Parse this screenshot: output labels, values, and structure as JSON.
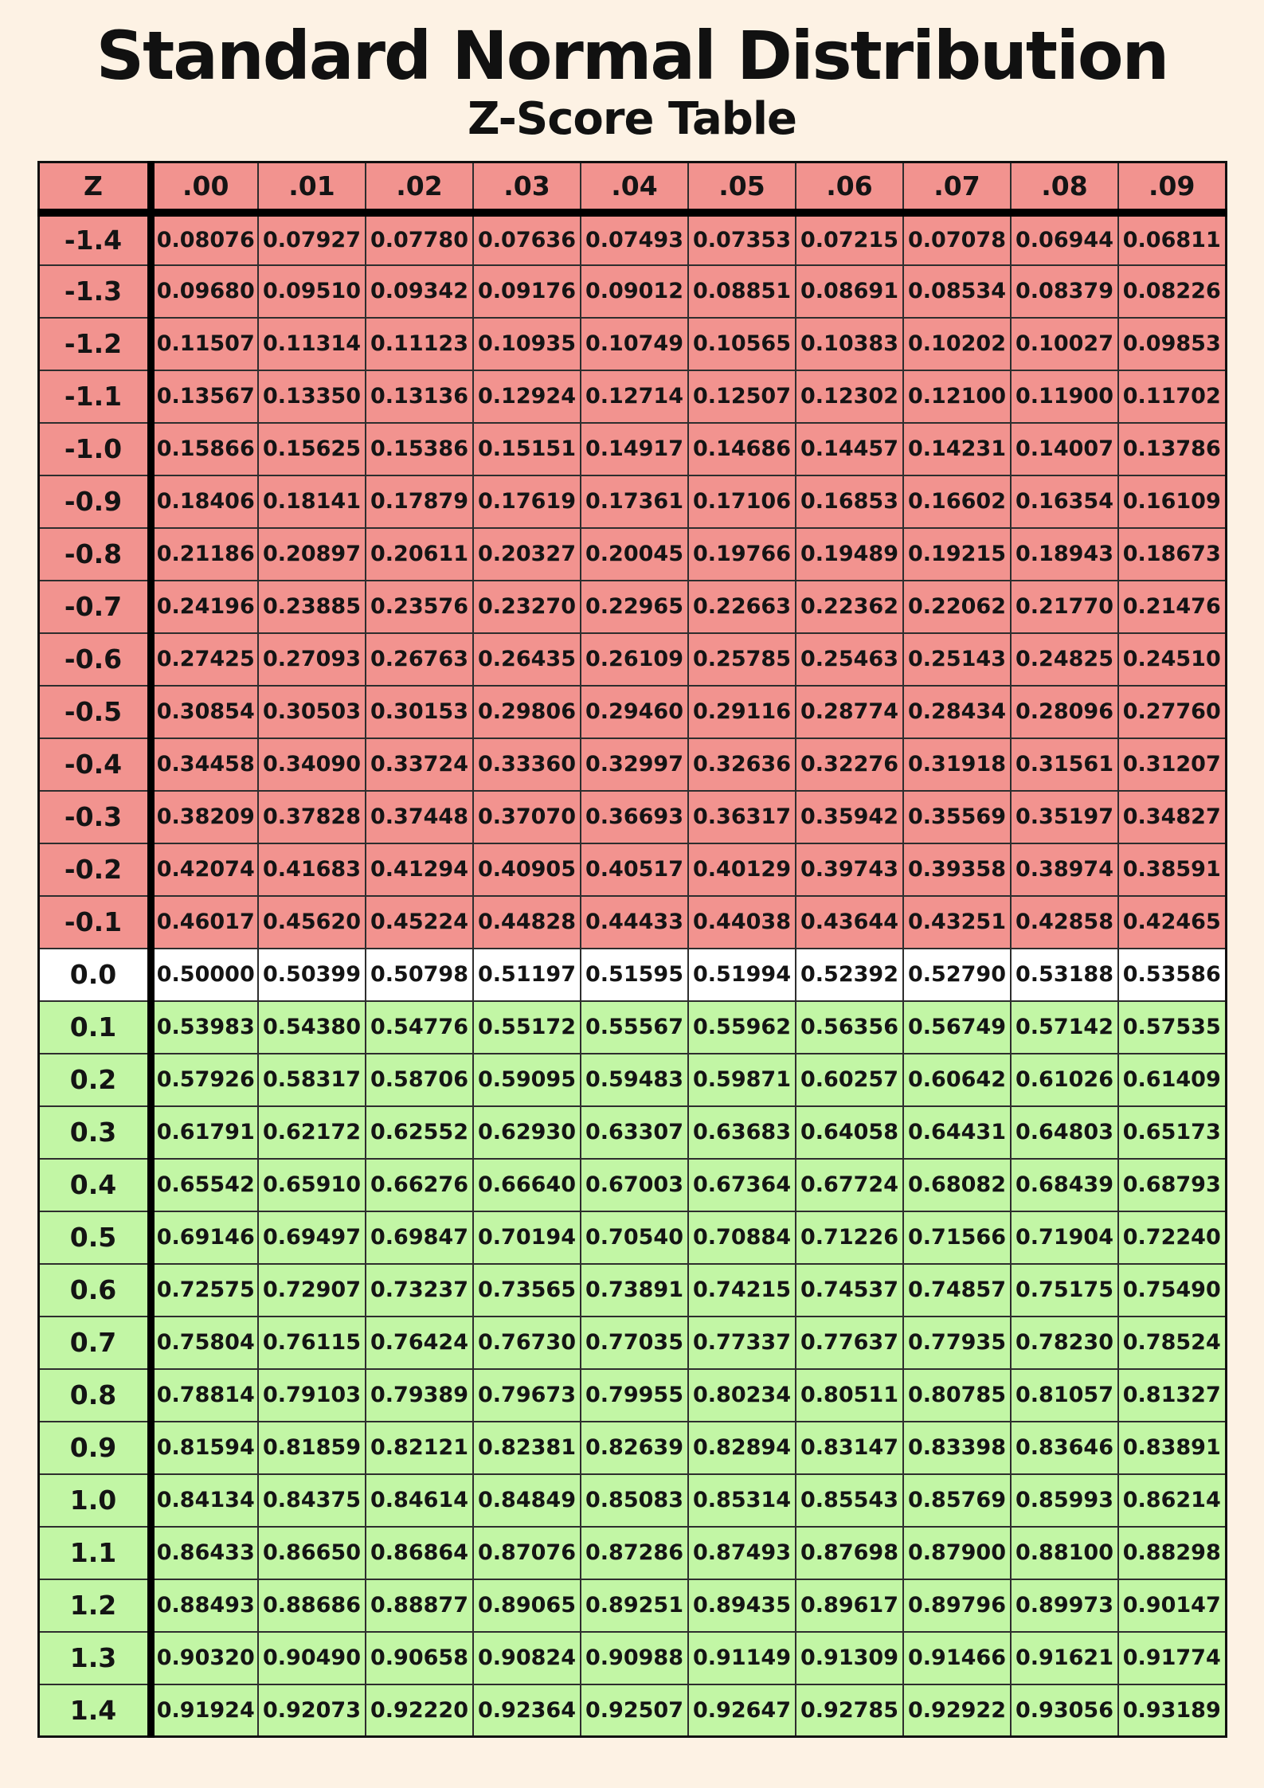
{
  "title": "Standard Normal Distribution",
  "subtitle": "Z-Score Table",
  "colors": {
    "background": "#FDF2E4",
    "negative_rows": "#F2938F",
    "zero_row": "#FFFFFF",
    "positive_rows": "#C2F6A5",
    "header_row": "#F2938F",
    "text": "#141414"
  },
  "chart_data": {
    "type": "table",
    "title": "Standard Normal Distribution",
    "subtitle": "Z-Score Table",
    "columns": [
      "Z",
      ".00",
      ".01",
      ".02",
      ".03",
      ".04",
      ".05",
      ".06",
      ".07",
      ".08",
      ".09"
    ],
    "rows": [
      {
        "z": "-1.4",
        "values": [
          "0.08076",
          "0.07927",
          "0.07780",
          "0.07636",
          "0.07493",
          "0.07353",
          "0.07215",
          "0.07078",
          "0.06944",
          "0.06811"
        ]
      },
      {
        "z": "-1.3",
        "values": [
          "0.09680",
          "0.09510",
          "0.09342",
          "0.09176",
          "0.09012",
          "0.08851",
          "0.08691",
          "0.08534",
          "0.08379",
          "0.08226"
        ]
      },
      {
        "z": "-1.2",
        "values": [
          "0.11507",
          "0.11314",
          "0.11123",
          "0.10935",
          "0.10749",
          "0.10565",
          "0.10383",
          "0.10202",
          "0.10027",
          "0.09853"
        ]
      },
      {
        "z": "-1.1",
        "values": [
          "0.13567",
          "0.13350",
          "0.13136",
          "0.12924",
          "0.12714",
          "0.12507",
          "0.12302",
          "0.12100",
          "0.11900",
          "0.11702"
        ]
      },
      {
        "z": "-1.0",
        "values": [
          "0.15866",
          "0.15625",
          "0.15386",
          "0.15151",
          "0.14917",
          "0.14686",
          "0.14457",
          "0.14231",
          "0.14007",
          "0.13786"
        ]
      },
      {
        "z": "-0.9",
        "values": [
          "0.18406",
          "0.18141",
          "0.17879",
          "0.17619",
          "0.17361",
          "0.17106",
          "0.16853",
          "0.16602",
          "0.16354",
          "0.16109"
        ]
      },
      {
        "z": "-0.8",
        "values": [
          "0.21186",
          "0.20897",
          "0.20611",
          "0.20327",
          "0.20045",
          "0.19766",
          "0.19489",
          "0.19215",
          "0.18943",
          "0.18673"
        ]
      },
      {
        "z": "-0.7",
        "values": [
          "0.24196",
          "0.23885",
          "0.23576",
          "0.23270",
          "0.22965",
          "0.22663",
          "0.22362",
          "0.22062",
          "0.21770",
          "0.21476"
        ]
      },
      {
        "z": "-0.6",
        "values": [
          "0.27425",
          "0.27093",
          "0.26763",
          "0.26435",
          "0.26109",
          "0.25785",
          "0.25463",
          "0.25143",
          "0.24825",
          "0.24510"
        ]
      },
      {
        "z": "-0.5",
        "values": [
          "0.30854",
          "0.30503",
          "0.30153",
          "0.29806",
          "0.29460",
          "0.29116",
          "0.28774",
          "0.28434",
          "0.28096",
          "0.27760"
        ]
      },
      {
        "z": "-0.4",
        "values": [
          "0.34458",
          "0.34090",
          "0.33724",
          "0.33360",
          "0.32997",
          "0.32636",
          "0.32276",
          "0.31918",
          "0.31561",
          "0.31207"
        ]
      },
      {
        "z": "-0.3",
        "values": [
          "0.38209",
          "0.37828",
          "0.37448",
          "0.37070",
          "0.36693",
          "0.36317",
          "0.35942",
          "0.35569",
          "0.35197",
          "0.34827"
        ]
      },
      {
        "z": "-0.2",
        "values": [
          "0.42074",
          "0.41683",
          "0.41294",
          "0.40905",
          "0.40517",
          "0.40129",
          "0.39743",
          "0.39358",
          "0.38974",
          "0.38591"
        ]
      },
      {
        "z": "-0.1",
        "values": [
          "0.46017",
          "0.45620",
          "0.45224",
          "0.44828",
          "0.44433",
          "0.44038",
          "0.43644",
          "0.43251",
          "0.42858",
          "0.42465"
        ]
      },
      {
        "z": "0.0",
        "values": [
          "0.50000",
          "0.50399",
          "0.50798",
          "0.51197",
          "0.51595",
          "0.51994",
          "0.52392",
          "0.52790",
          "0.53188",
          "0.53586"
        ]
      },
      {
        "z": "0.1",
        "values": [
          "0.53983",
          "0.54380",
          "0.54776",
          "0.55172",
          "0.55567",
          "0.55962",
          "0.56356",
          "0.56749",
          "0.57142",
          "0.57535"
        ]
      },
      {
        "z": "0.2",
        "values": [
          "0.57926",
          "0.58317",
          "0.58706",
          "0.59095",
          "0.59483",
          "0.59871",
          "0.60257",
          "0.60642",
          "0.61026",
          "0.61409"
        ]
      },
      {
        "z": "0.3",
        "values": [
          "0.61791",
          "0.62172",
          "0.62552",
          "0.62930",
          "0.63307",
          "0.63683",
          "0.64058",
          "0.64431",
          "0.64803",
          "0.65173"
        ]
      },
      {
        "z": "0.4",
        "values": [
          "0.65542",
          "0.65910",
          "0.66276",
          "0.66640",
          "0.67003",
          "0.67364",
          "0.67724",
          "0.68082",
          "0.68439",
          "0.68793"
        ]
      },
      {
        "z": "0.5",
        "values": [
          "0.69146",
          "0.69497",
          "0.69847",
          "0.70194",
          "0.70540",
          "0.70884",
          "0.71226",
          "0.71566",
          "0.71904",
          "0.72240"
        ]
      },
      {
        "z": "0.6",
        "values": [
          "0.72575",
          "0.72907",
          "0.73237",
          "0.73565",
          "0.73891",
          "0.74215",
          "0.74537",
          "0.74857",
          "0.75175",
          "0.75490"
        ]
      },
      {
        "z": "0.7",
        "values": [
          "0.75804",
          "0.76115",
          "0.76424",
          "0.76730",
          "0.77035",
          "0.77337",
          "0.77637",
          "0.77935",
          "0.78230",
          "0.78524"
        ]
      },
      {
        "z": "0.8",
        "values": [
          "0.78814",
          "0.79103",
          "0.79389",
          "0.79673",
          "0.79955",
          "0.80234",
          "0.80511",
          "0.80785",
          "0.81057",
          "0.81327"
        ]
      },
      {
        "z": "0.9",
        "values": [
          "0.81594",
          "0.81859",
          "0.82121",
          "0.82381",
          "0.82639",
          "0.82894",
          "0.83147",
          "0.83398",
          "0.83646",
          "0.83891"
        ]
      },
      {
        "z": "1.0",
        "values": [
          "0.84134",
          "0.84375",
          "0.84614",
          "0.84849",
          "0.85083",
          "0.85314",
          "0.85543",
          "0.85769",
          "0.85993",
          "0.86214"
        ]
      },
      {
        "z": "1.1",
        "values": [
          "0.86433",
          "0.86650",
          "0.86864",
          "0.87076",
          "0.87286",
          "0.87493",
          "0.87698",
          "0.87900",
          "0.88100",
          "0.88298"
        ]
      },
      {
        "z": "1.2",
        "values": [
          "0.88493",
          "0.88686",
          "0.88877",
          "0.89065",
          "0.89251",
          "0.89435",
          "0.89617",
          "0.89796",
          "0.89973",
          "0.90147"
        ]
      },
      {
        "z": "1.3",
        "values": [
          "0.90320",
          "0.90490",
          "0.90658",
          "0.90824",
          "0.90988",
          "0.91149",
          "0.91309",
          "0.91466",
          "0.91621",
          "0.91774"
        ]
      },
      {
        "z": "1.4",
        "values": [
          "0.91924",
          "0.92073",
          "0.92220",
          "0.92364",
          "0.92507",
          "0.92647",
          "0.92785",
          "0.92922",
          "0.93056",
          "0.93189"
        ]
      }
    ]
  }
}
